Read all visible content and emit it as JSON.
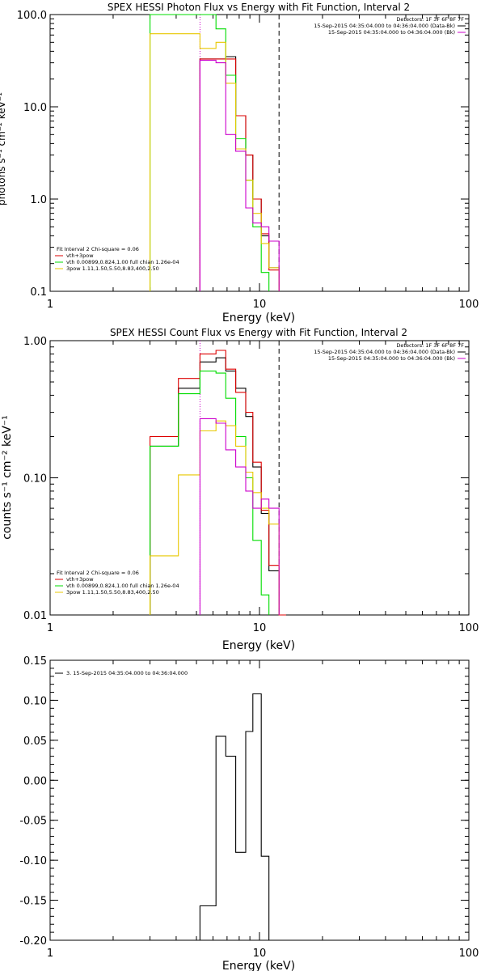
{
  "colors": {
    "black": "#000000",
    "red": "#dd0000",
    "green": "#00dd00",
    "yellow": "#e8c800",
    "magenta": "#cc00cc"
  },
  "chart_data": [
    {
      "type": "line",
      "step": true,
      "title": "SPEX HESSI Photon Flux vs Energy with Fit Function, Interval 2",
      "xlabel": "Energy (keV)",
      "ylabel": "photons s⁻¹ cm⁻² keV⁻¹",
      "xscale": "log",
      "yscale": "log",
      "xlim": [
        1,
        100
      ],
      "ylim": [
        0.1,
        100
      ],
      "xticks": [
        {
          "v": 1,
          "label": "1"
        },
        {
          "v": 10,
          "label": "10"
        },
        {
          "v": 100,
          "label": "100"
        }
      ],
      "yticks": [
        {
          "v": 0.1,
          "label": "0.1"
        },
        {
          "v": 1,
          "label": "1.0"
        },
        {
          "v": 10,
          "label": "10.0"
        },
        {
          "v": 100,
          "label": "100.0"
        }
      ],
      "vlines": [
        {
          "x": 5.2,
          "style": "dotted",
          "color": "magenta"
        },
        {
          "x": 12.4,
          "style": "dashed",
          "color": "black"
        }
      ],
      "legend_left": [
        "Fit Interval 2   Chi-square = 0.06",
        "vth+3pow",
        "vth 0.00899,0.824,1.00   full chian 1.26e-04",
        "3pow 1.11,1.50,5.50,8.83,400,2.50"
      ],
      "legend_left_colors": [
        "",
        "red",
        "green",
        "yellow"
      ],
      "legend_right": [
        "Detectors: 1F 3F 6F 8F 7F",
        "15-Sep-2015 04:35:04.000 to 04:36:04.000 (Data-Bk)",
        "15-Sep-2015 04:35:04.000 to 04:36:04.000 (Bk)"
      ],
      "legend_right_colors": [
        "",
        "black",
        "magenta"
      ],
      "series": [
        {
          "name": "Data-Bk",
          "color": "black",
          "edges": [
            5.2,
            6.2,
            6.9,
            7.7,
            8.6,
            9.3,
            10.2,
            11.1,
            12.4
          ],
          "values": [
            33,
            33,
            35,
            8,
            3,
            1,
            0.4,
            0.18
          ]
        },
        {
          "name": "vth+3pow",
          "color": "red",
          "edges": [
            5.2,
            6.2,
            6.9,
            7.7,
            8.6,
            9.3,
            10.2,
            11.1,
            12.4
          ],
          "values": [
            33,
            33,
            33,
            8,
            3,
            1,
            0.42,
            0.17
          ]
        },
        {
          "name": "vth",
          "color": "green",
          "edges": [
            3,
            5.2,
            6.2,
            6.9,
            7.7,
            8.6,
            9.3,
            10.2,
            11.1
          ],
          "values": [
            100,
            100,
            70,
            22,
            4.5,
            1.6,
            0.5,
            0.16
          ]
        },
        {
          "name": "3pow",
          "color": "yellow",
          "edges": [
            3,
            4.1,
            5.2,
            6.2,
            6.9,
            7.7,
            8.6,
            9.3,
            10.2,
            11.1,
            12.4
          ],
          "values": [
            62,
            62,
            43,
            50,
            18,
            3.5,
            1.6,
            0.7,
            0.33,
            0.18
          ]
        },
        {
          "name": "Bk",
          "color": "magenta",
          "edges": [
            5.2,
            6.2,
            6.9,
            7.7,
            8.6,
            9.3,
            10.2,
            11.1,
            12.4
          ],
          "values": [
            32,
            30,
            5,
            3.3,
            0.8,
            0.55,
            0.5,
            0.35
          ]
        }
      ]
    },
    {
      "type": "line",
      "step": true,
      "title": "SPEX HESSI Count Flux vs Energy with Fit Function, Interval 2",
      "xlabel": "Energy (keV)",
      "ylabel": "counts s⁻¹ cm⁻² keV⁻¹",
      "xscale": "log",
      "yscale": "log",
      "xlim": [
        1,
        100
      ],
      "ylim": [
        0.01,
        1
      ],
      "xticks": [
        {
          "v": 1,
          "label": "1"
        },
        {
          "v": 10,
          "label": "10"
        },
        {
          "v": 100,
          "label": "100"
        }
      ],
      "yticks": [
        {
          "v": 0.01,
          "label": "0.01"
        },
        {
          "v": 0.1,
          "label": "0.10"
        },
        {
          "v": 1,
          "label": "1.00"
        }
      ],
      "vlines": [
        {
          "x": 5.2,
          "style": "dotted",
          "color": "magenta"
        },
        {
          "x": 12.4,
          "style": "dashed",
          "color": "black"
        }
      ],
      "legend_left": [
        "Fit Interval 2   Chi-square = 0.06",
        "vth+3pow",
        "vth 0.00899,0.824,1.00   full chian 1.26e-04",
        "3pow 1.11,1.50,5.50,8.83,400,2.50"
      ],
      "legend_left_colors": [
        "",
        "red",
        "green",
        "yellow"
      ],
      "legend_right": [
        "Detectors: 1F 3F 6F 8F 7F",
        "15-Sep-2015 04:35:04.000 to 04:36:04.000 (Data-Bk)",
        "15-Sep-2015 04:35:04.000 to 04:36:04.000 (Bk)"
      ],
      "legend_right_colors": [
        "",
        "black",
        "magenta"
      ],
      "series": [
        {
          "name": "Data-Bk",
          "color": "black",
          "edges": [
            3,
            4.1,
            5.2,
            6.2,
            6.9,
            7.7,
            8.6,
            9.3,
            10.2,
            11.1,
            12.4
          ],
          "values": [
            0.17,
            0.45,
            0.7,
            0.75,
            0.6,
            0.45,
            0.28,
            0.12,
            0.055,
            0.021
          ]
        },
        {
          "name": "vth+3pow",
          "color": "red",
          "edges": [
            3,
            4.1,
            5.2,
            6.2,
            6.9,
            7.7,
            8.6,
            9.3,
            10.2,
            11.1,
            12.4,
            13.4
          ],
          "values": [
            0.2,
            0.53,
            0.8,
            0.85,
            0.62,
            0.42,
            0.3,
            0.13,
            0.058,
            0.023,
            0.01
          ]
        },
        {
          "name": "vth",
          "color": "green",
          "edges": [
            3,
            4.1,
            5.2,
            6.2,
            6.9,
            7.7,
            8.6,
            9.3,
            10.2,
            11.1
          ],
          "values": [
            0.17,
            0.41,
            0.6,
            0.58,
            0.38,
            0.2,
            0.1,
            0.035,
            0.014
          ]
        },
        {
          "name": "3pow",
          "color": "yellow",
          "edges": [
            3,
            4.1,
            5.2,
            6.2,
            6.9,
            7.7,
            8.6,
            9.3,
            10.2,
            11.1,
            12.4
          ],
          "values": [
            0.027,
            0.105,
            0.22,
            0.26,
            0.24,
            0.17,
            0.11,
            0.078,
            0.06,
            0.046
          ]
        },
        {
          "name": "Bk",
          "color": "magenta",
          "edges": [
            5.2,
            6.2,
            6.9,
            7.7,
            8.6,
            9.3,
            10.2,
            11.1,
            12.4
          ],
          "values": [
            0.27,
            0.25,
            0.16,
            0.12,
            0.08,
            0.06,
            0.07,
            0.06
          ]
        }
      ]
    },
    {
      "type": "line",
      "step": true,
      "title": "",
      "xlabel": "Energy (keV)",
      "ylabel": "",
      "xscale": "log",
      "yscale": "linear",
      "xlim": [
        1,
        100
      ],
      "ylim": [
        -0.2,
        0.15
      ],
      "xticks": [
        {
          "v": 1,
          "label": "1"
        },
        {
          "v": 10,
          "label": "10"
        },
        {
          "v": 100,
          "label": "100"
        }
      ],
      "yticks": [
        {
          "v": -0.2,
          "label": "-0.20"
        },
        {
          "v": -0.15,
          "label": "-0.15"
        },
        {
          "v": -0.1,
          "label": "-0.10"
        },
        {
          "v": -0.05,
          "label": "-0.05"
        },
        {
          "v": 0,
          "label": "0.00"
        },
        {
          "v": 0.05,
          "label": "0.05"
        },
        {
          "v": 0.1,
          "label": "0.10"
        },
        {
          "v": 0.15,
          "label": "0.15"
        }
      ],
      "vlines": [],
      "legend_left": [
        "3. 15-Sep-2015 04:35:04.000 to 04:36:04.000"
      ],
      "legend_left_colors": [
        "black"
      ],
      "legend_right": [],
      "legend_right_colors": [],
      "series": [
        {
          "name": "3. 15-Sep-2015 04:35:04.000 to 04:36:04.000",
          "color": "black",
          "edges": [
            5.2,
            6.2,
            6.9,
            7.7,
            8.6,
            9.3,
            10.2,
            11.1,
            12.4
          ],
          "values": [
            -0.157,
            0.055,
            0.03,
            -0.09,
            0.061,
            0.108,
            -0.095,
            -0.2
          ]
        }
      ]
    }
  ]
}
